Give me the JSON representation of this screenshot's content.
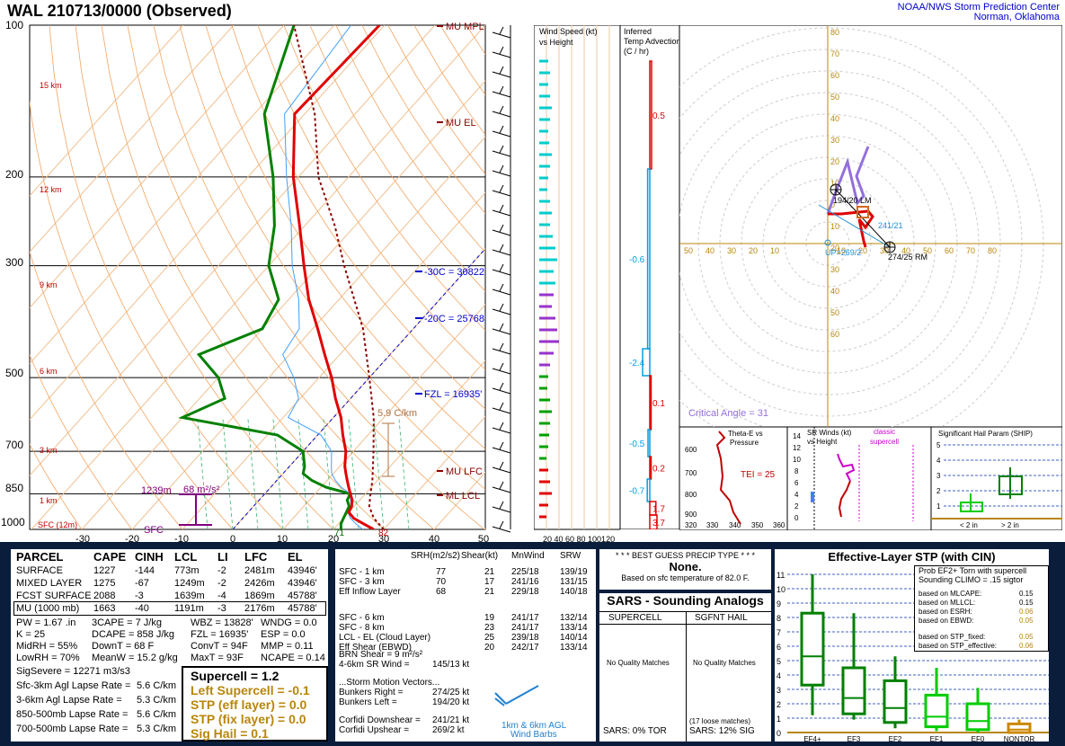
{
  "header": {
    "title": "WAL   210713/0000  (Observed)",
    "org_line1": "NOAA/NWS Storm Prediction Center",
    "org_line2": "Norman, Oklahoma"
  },
  "skewt": {
    "pressure_labels": [
      "100",
      "200",
      "300",
      "500",
      "700",
      "850",
      "1000"
    ],
    "temp_labels": [
      "-30",
      "-20",
      "-10",
      "0",
      "10",
      "20",
      "30",
      "40",
      "50"
    ],
    "height_labels": [
      "15 km",
      "12 km",
      "9 km",
      "6 km",
      "3 km",
      "1 km",
      "SFC (12m)"
    ],
    "annotations": {
      "mu_mpl": "MU MPL",
      "mu_el": "MU EL",
      "mu_lfc": "MU LFC",
      "ml_lcl": "ML LCL",
      "m30c": "-30C = 30822'",
      "m20c": "-20C = 25768'",
      "fzl": "FZL = 16935'",
      "lapse": "5.9 C/km",
      "effinflow_h": "1239m",
      "effinflow_srh": "68 m²/s²",
      "sfc": "SFC",
      "sfc_td": "71",
      "sfc_t": "82"
    }
  },
  "wind_panel": {
    "title1": "Wind Speed (kt)",
    "title2": "vs Height",
    "axis": "20 40 60 80 100120"
  },
  "temp_adv": {
    "title1": "Inferred",
    "title2": "Temp Advection",
    "title3": "(C / hr)",
    "values": [
      "0.5",
      "-0.6",
      "-2.4",
      "0.1",
      "-0.5",
      "0.2",
      "-0.7",
      "1.7",
      "3.7"
    ]
  },
  "hodograph": {
    "ring_labels_y": [
      "80",
      "70",
      "60",
      "50",
      "40",
      "30",
      "20",
      "10",
      "0",
      "10",
      "20",
      "30",
      "40",
      "50",
      "60"
    ],
    "x_labels": [
      "50",
      "40",
      "30",
      "20",
      "10",
      "10",
      "20",
      "30",
      "40",
      "50",
      "60",
      "70",
      "80"
    ],
    "lm_label": "194/20 LM",
    "rm_label": "274/25 RM",
    "mean_label": "241/21",
    "up_label": "UP=269/2",
    "critical_angle": "Critical Angle = 31"
  },
  "theta_panel": {
    "title1": "Theta-E vs",
    "title2": "Pressure",
    "tei": "TEI = 25",
    "y_labels": [
      "600",
      "700",
      "800",
      "900"
    ],
    "x_labels": [
      "320",
      "330",
      "340",
      "350",
      "360"
    ]
  },
  "srw_panel": {
    "title1": "SR Winds (kt)",
    "title2": "vs Height",
    "classic1": "classic",
    "classic2": "supercell",
    "y_labels": [
      "14",
      "12",
      "10",
      "8",
      "6",
      "4",
      "2",
      "0"
    ]
  },
  "ship_panel": {
    "title": "Significant Hail Param (SHIP)",
    "y_labels": [
      "5",
      "4",
      "3",
      "2",
      "1"
    ],
    "x_labels": [
      "< 2 in",
      "> 2 in"
    ]
  },
  "parcel_table": {
    "headers": [
      "PARCEL",
      "CAPE",
      "CINH",
      "LCL",
      "LI",
      "LFC",
      "EL"
    ],
    "rows": [
      [
        "SURFACE",
        "1227",
        "-144",
        "773m",
        "-2",
        "2481m",
        "43946'"
      ],
      [
        "MIXED LAYER",
        "1275",
        "-67",
        "1249m",
        "-2",
        "2426m",
        "43946'"
      ],
      [
        "FCST SURFACE",
        "2088",
        "-3",
        "1639m",
        "-4",
        "1869m",
        "45788'"
      ],
      [
        "MU   (1000 mb)",
        "1663",
        "-40",
        "1191m",
        "-3",
        "2176m",
        "45788'"
      ]
    ],
    "indices": [
      [
        "PW = 1.67 .in",
        "3CAPE = 7 J/kg",
        "WBZ = 13828'",
        "WNDG = 0.0"
      ],
      [
        "K = 25",
        "DCAPE = 858 J/kg",
        "FZL = 16935'",
        "ESP = 0.0"
      ],
      [
        "MidRH = 55%",
        "DownT = 68 F",
        "ConvT = 94F",
        "MMP = 0.11"
      ],
      [
        "LowRH = 70%",
        "MeanW = 15.2 g/kg",
        "MaxT = 93F",
        "NCAPE = 0.14"
      ]
    ],
    "sigsevere": "SigSevere = 12271 m3/s3",
    "lapse": [
      [
        "Sfc-3km Agl Lapse Rate =",
        "5.6 C/km"
      ],
      [
        "3-6km Agl Lapse Rate =",
        "5.3 C/km"
      ],
      [
        "850-500mb Lapse Rate =",
        "5.6 C/km"
      ],
      [
        "700-500mb Lapse Rate =",
        "5.3 C/km"
      ]
    ],
    "composites": {
      "supercell": "Supercell = 1.2",
      "left_supercell": "Left Supercell = -0.1",
      "stp_eff": "STP (eff layer) = 0.0",
      "stp_fix": "STP (fix layer) = 0.0",
      "sig_hail": "Sig Hail = 0.1"
    }
  },
  "kinematics": {
    "headers": [
      "SRH(m2/s2)",
      "Shear(kt)",
      "MnWind",
      "SRW"
    ],
    "rows": [
      [
        "SFC - 1 km",
        "77",
        "21",
        "225/18",
        "139/19"
      ],
      [
        "SFC - 3 km",
        "70",
        "17",
        "241/16",
        "131/15"
      ],
      [
        "Eff Inflow Layer",
        "68",
        "21",
        "229/18",
        "140/18"
      ],
      [
        "SFC - 6 km",
        "",
        "19",
        "241/17",
        "132/14"
      ],
      [
        "SFC - 8 km",
        "",
        "23",
        "241/17",
        "133/14"
      ],
      [
        "LCL - EL (Cloud Layer)",
        "",
        "25",
        "239/18",
        "140/14"
      ],
      [
        "Eff Shear (EBWD)",
        "",
        "20",
        "242/17",
        "133/14"
      ]
    ],
    "brn_shear": "BRN Shear = 9 m²/s²",
    "sr_wind": "4-6km SR Wind =",
    "sr_wind_val": "145/13 kt",
    "storm_motion": "...Storm Motion Vectors...",
    "bunkers_right": "Bunkers Right =",
    "bunkers_right_val": "274/25 kt",
    "bunkers_left": "Bunkers Left =",
    "bunkers_left_val": "194/20 kt",
    "corfidi_down": "Corfidi Downshear =",
    "corfidi_down_val": "241/21 kt",
    "corfidi_up": "Corfidi Upshear =",
    "corfidi_up_val": "269/2 kt",
    "barbs_label1": "1km & 6km AGL",
    "barbs_label2": "Wind Barbs"
  },
  "precip": {
    "title": "* * * BEST GUESS PRECIP TYPE * * *",
    "value": "None.",
    "sub": "Based on sfc temperature of 82.0 F."
  },
  "sars": {
    "title": "SARS - Sounding Analogs",
    "col1": "SUPERCELL",
    "col2": "SGFNT HAIL",
    "match1": "No Quality Matches",
    "match2": "No Quality Matches",
    "loose": "(17 loose matches)",
    "tor": "SARS:  0% TOR",
    "sig": "SARS:  12% SIG"
  },
  "stp_panel": {
    "title": "Effective-Layer STP (with CIN)",
    "prob_title1": "Prob EF2+ Torn with supercell",
    "prob_title2": "Sounding CLIMO = .15 sigtor",
    "probs": [
      [
        "based on MLCAPE:",
        "0.15"
      ],
      [
        "based on MLLCL:",
        "0.15"
      ],
      [
        "based on ESRH:",
        "0.06"
      ],
      [
        "based on EBWD:",
        "0.05"
      ],
      [
        "based on STP_fixed:",
        "0.05"
      ],
      [
        "based on STP_effective:",
        "0.06"
      ]
    ],
    "y_labels": [
      "11",
      "10",
      "9",
      "8",
      "7",
      "6",
      "5",
      "4",
      "3",
      "2",
      "1",
      "0"
    ],
    "categories": [
      "EF4+",
      "EF3",
      "EF2",
      "EF1",
      "EF0",
      "NONTOR"
    ]
  },
  "chart_data": {
    "type": "skew-t",
    "profile": {
      "pressure": [
        1000,
        975,
        950,
        925,
        900,
        875,
        850,
        825,
        800,
        775,
        750,
        700,
        650,
        600,
        550,
        500,
        450,
        400,
        350,
        300,
        250,
        200,
        150,
        100
      ],
      "temperature": [
        28,
        25,
        22,
        20,
        19.5,
        18.5,
        17,
        15.5,
        14,
        12.5,
        11,
        8.5,
        5,
        1.5,
        -3,
        -7.5,
        -13,
        -19,
        -26,
        -33,
        -41,
        -51,
        -62,
        -61
      ],
      "dewpoint": [
        21.5,
        20.5,
        20,
        19.5,
        19,
        17.5,
        17,
        11,
        7,
        4,
        3,
        0,
        -8,
        -30,
        -25,
        -30,
        -38,
        -30,
        -32,
        -40,
        -46,
        -55,
        -68,
        -78
      ]
    },
    "stp_boxes": [
      {
        "category": "EF4+",
        "p10": 1.2,
        "p25": 3.3,
        "median": 5.3,
        "p75": 8.3,
        "p90": 11.0
      },
      {
        "category": "EF3",
        "p10": 0.9,
        "p25": 1.3,
        "median": 2.4,
        "p75": 4.5,
        "p90": 8.3
      },
      {
        "category": "EF2",
        "p10": 0.3,
        "p25": 0.7,
        "median": 1.7,
        "p75": 3.6,
        "p90": 5.3
      },
      {
        "category": "EF1",
        "p10": 0.1,
        "p25": 0.4,
        "median": 1.1,
        "p75": 2.6,
        "p90": 4.5
      },
      {
        "category": "EF0",
        "p10": 0.0,
        "p25": 0.2,
        "median": 0.8,
        "p75": 2.0,
        "p90": 3.1
      },
      {
        "category": "NONTOR",
        "p10": 0.0,
        "p25": 0.0,
        "median": 0.2,
        "p75": 0.6,
        "p90": 0.9
      }
    ]
  }
}
